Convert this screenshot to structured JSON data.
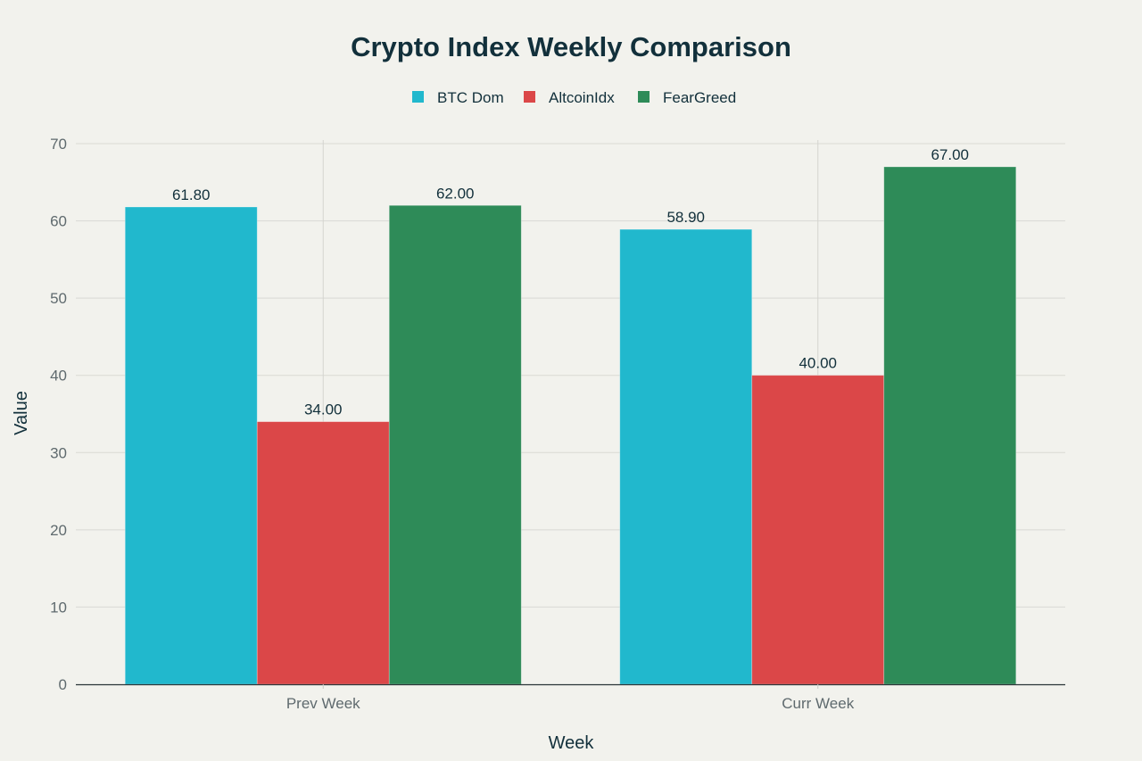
{
  "chart_data": {
    "type": "bar",
    "title": "Crypto Index Weekly Comparison",
    "xlabel": "Week",
    "ylabel": "Value",
    "categories": [
      "Prev Week",
      "Curr Week"
    ],
    "series": [
      {
        "name": "BTC Dom",
        "color": "#21b8cd",
        "values": [
          61.8,
          58.9
        ],
        "labels": [
          "61.80",
          "58.90"
        ]
      },
      {
        "name": "AltcoinIdx",
        "color": "#db4748",
        "values": [
          34.0,
          40.0
        ],
        "labels": [
          "34.00",
          "40.00"
        ]
      },
      {
        "name": "FearGreed",
        "color": "#2e8b58",
        "values": [
          62.0,
          67.0
        ],
        "labels": [
          "62.00",
          "67.00"
        ]
      }
    ],
    "ylim": [
      0,
      70
    ],
    "yticks": [
      0,
      10,
      20,
      30,
      40,
      50,
      60,
      70
    ],
    "grid": true,
    "legend_position": "top-center"
  }
}
